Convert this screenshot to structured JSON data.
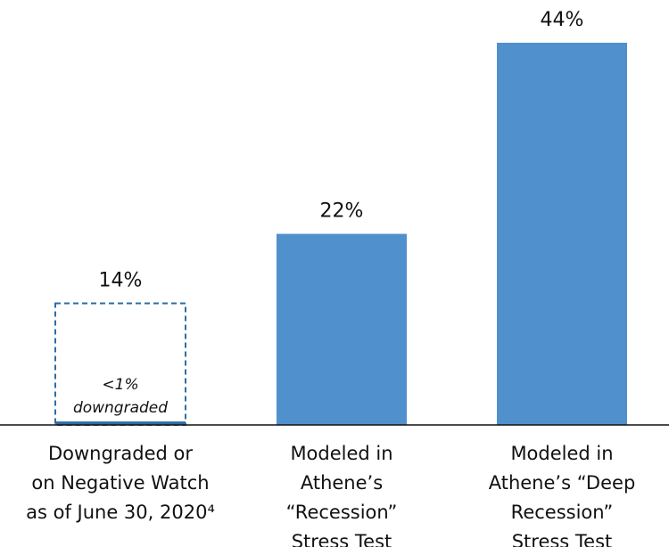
{
  "chart_data": {
    "type": "bar",
    "categories": [
      [
        "Downgraded or",
        "on Negative Watch",
        "as of June 30, 2020⁴"
      ],
      [
        "Modeled in",
        "Athene’s",
        "“Recession”",
        "Stress Test"
      ],
      [
        "Modeled in",
        "Athene’s “Deep",
        "Recession”",
        "Stress Test"
      ]
    ],
    "values": [
      14,
      22,
      44
    ],
    "value_labels": [
      "14%",
      "22%",
      "44%"
    ],
    "bar_styles": [
      "dashed",
      "solid",
      "solid"
    ],
    "color": "#4f90cd",
    "outline_color": "#2e6da4",
    "inner_bar": {
      "value": 0.4,
      "label": "<1%",
      "note": "downgraded"
    },
    "ylim": [
      0,
      44
    ]
  }
}
